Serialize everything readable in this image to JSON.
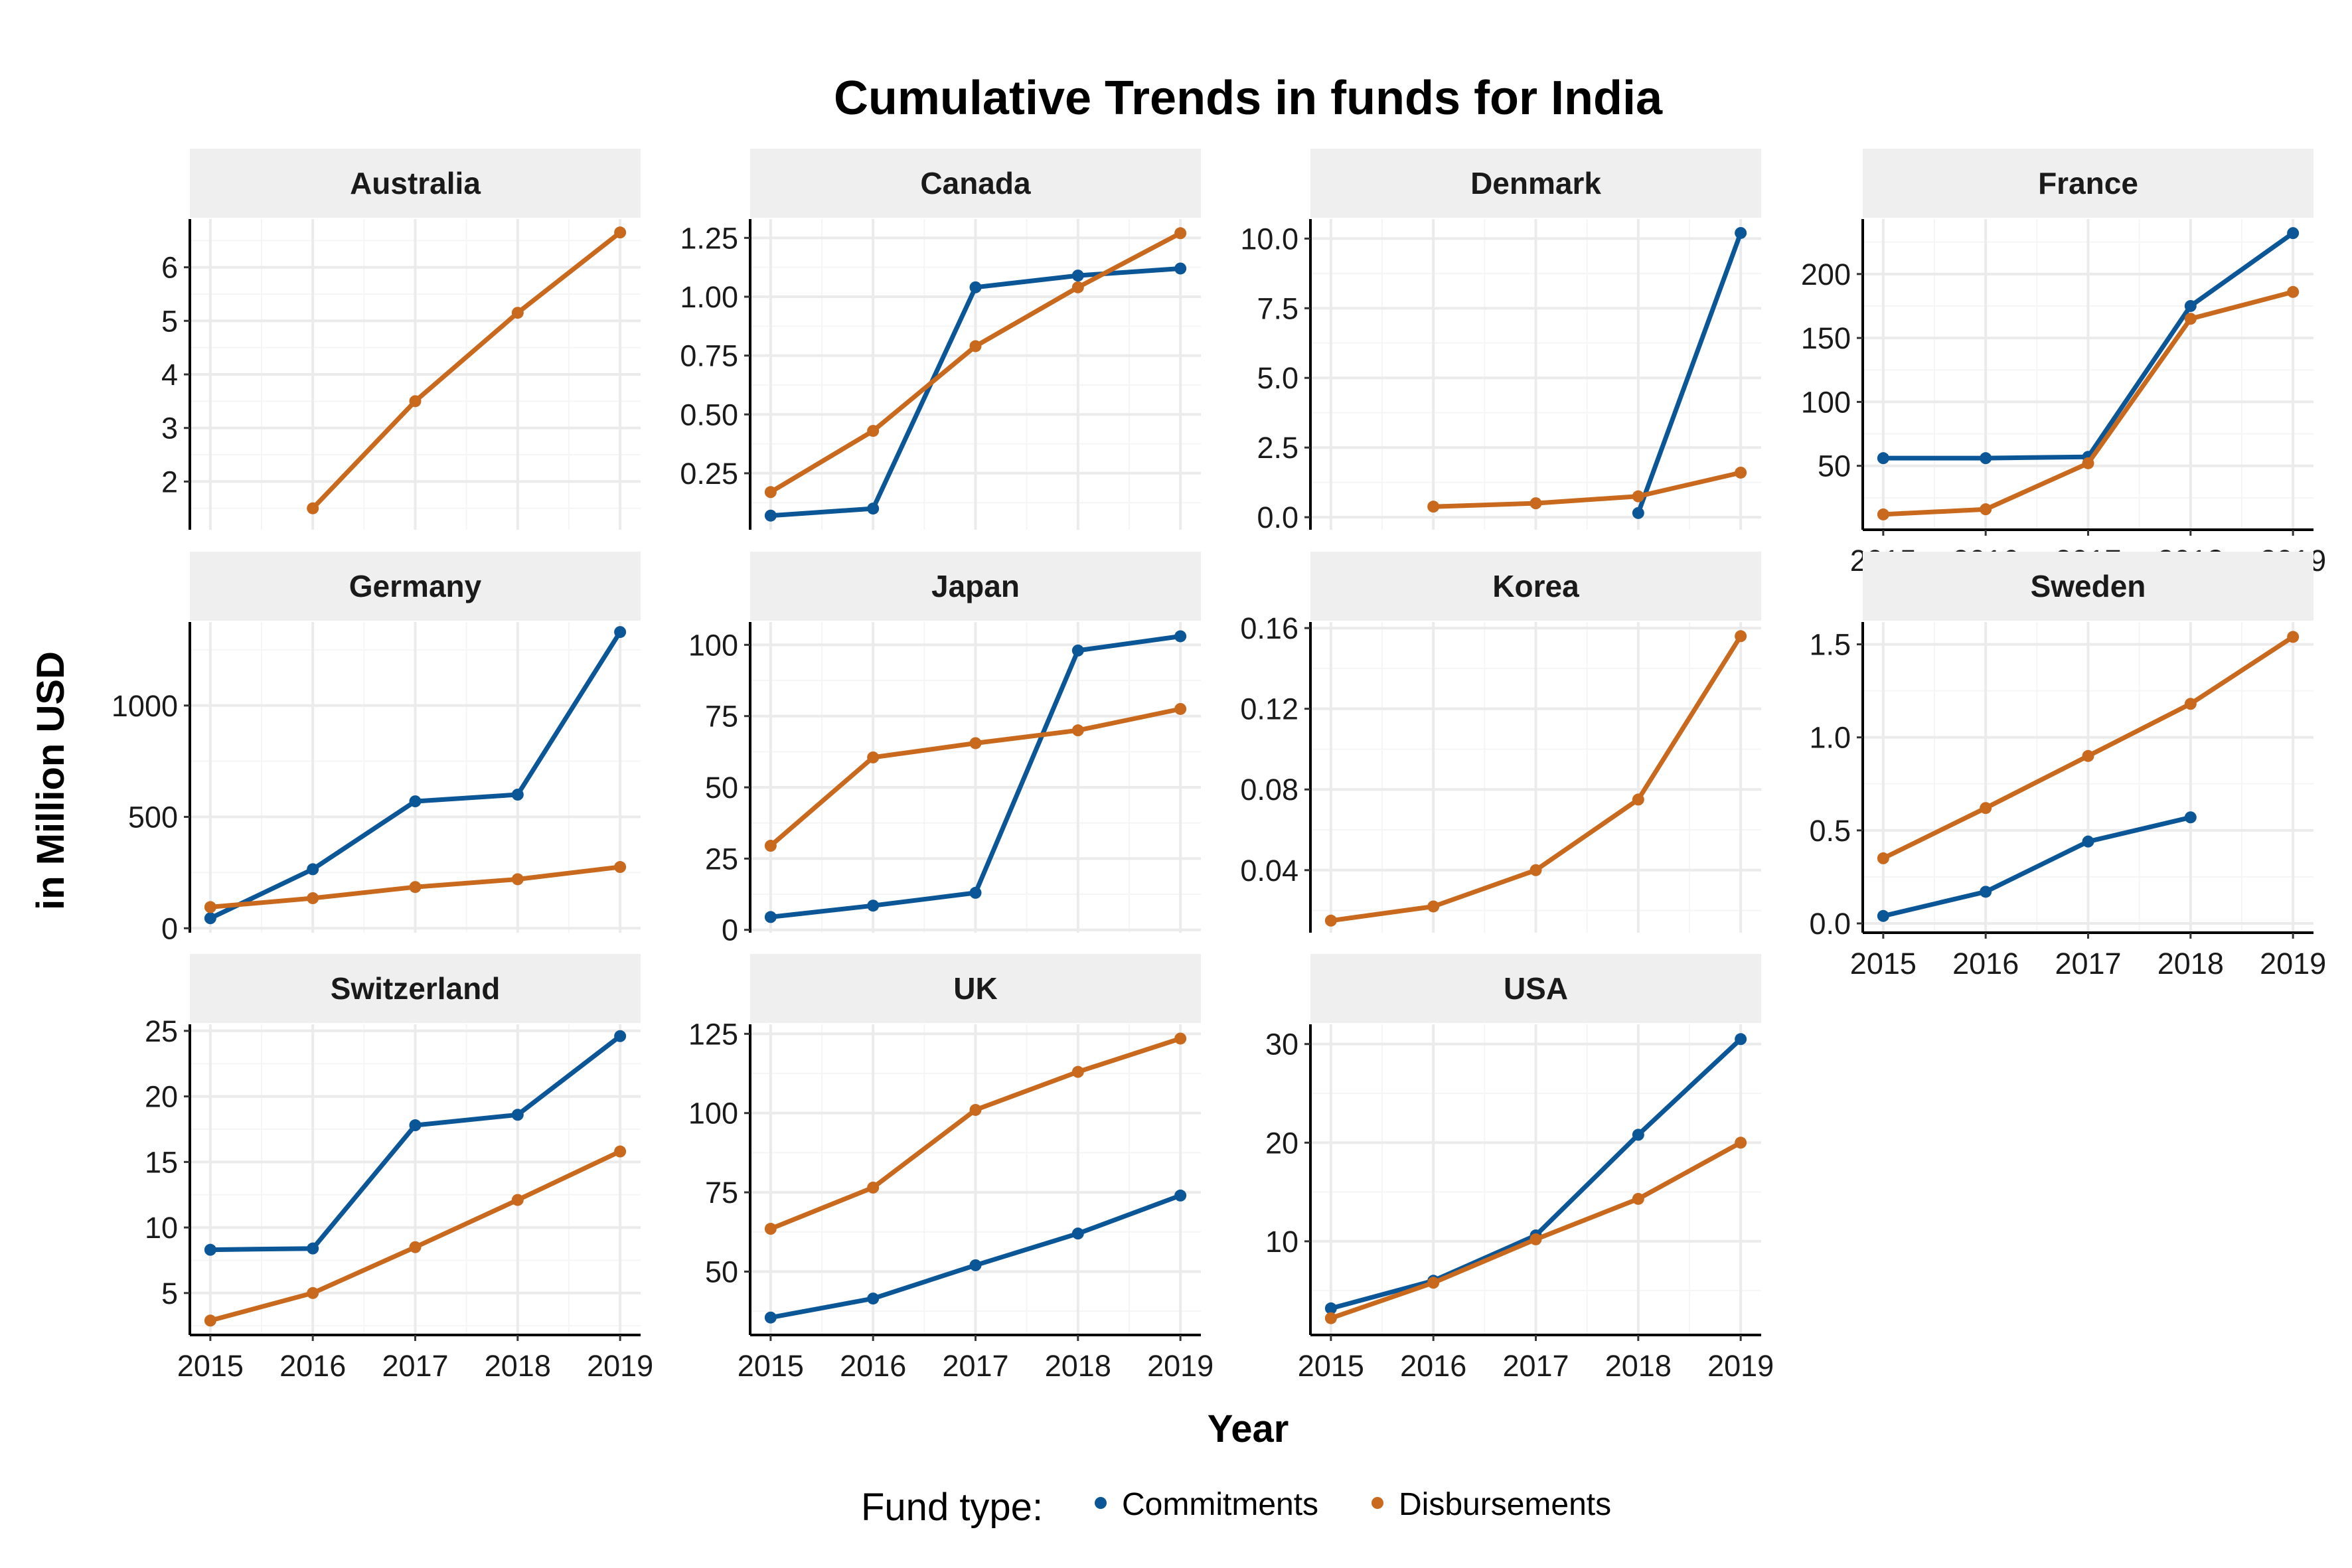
{
  "chart_data": {
    "type": "line",
    "title": "Cumulative Trends in funds for India",
    "xlabel": "Year",
    "ylabel": "in Million USD",
    "x": [
      2015,
      2016,
      2017,
      2018,
      2019
    ],
    "legend": {
      "title": "Fund type:",
      "placement": "bottom",
      "entries": [
        {
          "name": "Commitments",
          "color": "#0b5696"
        },
        {
          "name": "Disbursements",
          "color": "#c8691d"
        }
      ]
    },
    "grid": true,
    "panels": [
      {
        "name": "Australia",
        "ylim": [
          1.1,
          6.9
        ],
        "yticks": [
          2,
          3,
          4,
          5,
          6
        ],
        "ytick_labels": [
          "2",
          "3",
          "4",
          "5",
          "6"
        ],
        "show_xaxis": false,
        "series": [
          {
            "name": "Commitments",
            "values": [
              null,
              null,
              null,
              null,
              null
            ]
          },
          {
            "name": "Disbursements",
            "values": [
              null,
              1.5,
              3.5,
              5.15,
              6.65
            ]
          }
        ]
      },
      {
        "name": "Canada",
        "ylim": [
          0.01,
          1.33
        ],
        "yticks": [
          0.25,
          0.5,
          0.75,
          1.0,
          1.25
        ],
        "ytick_labels": [
          "0.25",
          "0.50",
          "0.75",
          "1.00",
          "1.25"
        ],
        "show_xaxis": false,
        "series": [
          {
            "name": "Commitments",
            "values": [
              0.07,
              0.1,
              1.04,
              1.09,
              1.12
            ]
          },
          {
            "name": "Disbursements",
            "values": [
              0.17,
              0.43,
              0.79,
              1.04,
              1.27
            ]
          }
        ]
      },
      {
        "name": "Denmark",
        "ylim": [
          -0.45,
          10.7
        ],
        "yticks": [
          0,
          2.5,
          5,
          7.5,
          10
        ],
        "ytick_labels": [
          "0.0",
          "2.5",
          "5.0",
          "7.5",
          "10.0"
        ],
        "show_xaxis": false,
        "series": [
          {
            "name": "Commitments",
            "values": [
              null,
              null,
              null,
              0.15,
              10.2
            ]
          },
          {
            "name": "Disbursements",
            "values": [
              null,
              0.38,
              0.5,
              0.75,
              1.6
            ]
          }
        ]
      },
      {
        "name": "France",
        "ylim": [
          0,
          243
        ],
        "yticks": [
          50,
          100,
          150,
          200
        ],
        "ytick_labels": [
          "50",
          "100",
          "150",
          "200"
        ],
        "show_xaxis": true,
        "series": [
          {
            "name": "Commitments",
            "values": [
              56,
              56,
              57,
              175,
              232
            ]
          },
          {
            "name": "Disbursements",
            "values": [
              12,
              16,
              52,
              165,
              186
            ]
          }
        ]
      },
      {
        "name": "Germany",
        "ylim": [
          -20,
          1375
        ],
        "yticks": [
          0,
          500,
          1000
        ],
        "ytick_labels": [
          "0",
          "500",
          "1000"
        ],
        "show_xaxis": false,
        "series": [
          {
            "name": "Commitments",
            "values": [
              45,
              265,
              570,
              600,
              1330
            ]
          },
          {
            "name": "Disbursements",
            "values": [
              95,
              135,
              185,
              220,
              275
            ]
          }
        ]
      },
      {
        "name": "Japan",
        "ylim": [
          -1,
          108
        ],
        "yticks": [
          0,
          25,
          50,
          75,
          100
        ],
        "ytick_labels": [
          "0",
          "25",
          "50",
          "75",
          "100"
        ],
        "show_xaxis": false,
        "series": [
          {
            "name": "Commitments",
            "values": [
              4.5,
              8.5,
              13,
              98,
              103
            ]
          },
          {
            "name": "Disbursements",
            "values": [
              29.5,
              60.5,
              65.5,
              70,
              77.5
            ]
          }
        ]
      },
      {
        "name": "Korea",
        "ylim": [
          0.009,
          0.163
        ],
        "yticks": [
          0.04,
          0.08,
          0.12,
          0.16
        ],
        "ytick_labels": [
          "0.04",
          "0.08",
          "0.12",
          "0.16"
        ],
        "show_xaxis": false,
        "series": [
          {
            "name": "Commitments",
            "values": [
              null,
              null,
              null,
              null,
              null
            ]
          },
          {
            "name": "Disbursements",
            "values": [
              0.015,
              0.022,
              0.04,
              0.075,
              0.156
            ]
          }
        ]
      },
      {
        "name": "Sweden",
        "ylim": [
          -0.05,
          1.62
        ],
        "yticks": [
          0,
          0.5,
          1.0,
          1.5
        ],
        "ytick_labels": [
          "0.0",
          "0.5",
          "1.0",
          "1.5"
        ],
        "show_xaxis": true,
        "series": [
          {
            "name": "Commitments",
            "values": [
              0.04,
              0.17,
              0.44,
              0.57,
              null
            ]
          },
          {
            "name": "Disbursements",
            "values": [
              0.35,
              0.62,
              0.9,
              1.18,
              1.54
            ]
          }
        ]
      },
      {
        "name": "Switzerland",
        "ylim": [
          1.8,
          25.5
        ],
        "yticks": [
          5,
          10,
          15,
          20,
          25
        ],
        "ytick_labels": [
          "5",
          "10",
          "15",
          "20",
          "25"
        ],
        "show_xaxis": true,
        "series": [
          {
            "name": "Commitments",
            "values": [
              8.3,
              8.4,
              17.8,
              18.6,
              24.6
            ]
          },
          {
            "name": "Disbursements",
            "values": [
              2.9,
              5.0,
              8.5,
              12.1,
              15.8
            ]
          }
        ]
      },
      {
        "name": "UK",
        "ylim": [
          30,
          128
        ],
        "yticks": [
          50,
          75,
          100,
          125
        ],
        "ytick_labels": [
          "50",
          "75",
          "100",
          "125"
        ],
        "show_xaxis": true,
        "series": [
          {
            "name": "Commitments",
            "values": [
              35.5,
              41.5,
              52,
              62,
              74
            ]
          },
          {
            "name": "Disbursements",
            "values": [
              63.5,
              76.5,
              101,
              113,
              123.5
            ]
          }
        ]
      },
      {
        "name": "USA",
        "ylim": [
          0.5,
          32
        ],
        "yticks": [
          10,
          20,
          30
        ],
        "ytick_labels": [
          "10",
          "20",
          "30"
        ],
        "show_xaxis": true,
        "series": [
          {
            "name": "Commitments",
            "values": [
              3.2,
              6.0,
              10.6,
              20.8,
              30.5
            ]
          },
          {
            "name": "Disbursements",
            "values": [
              2.2,
              5.8,
              10.2,
              14.3,
              20.0
            ]
          }
        ]
      }
    ]
  }
}
